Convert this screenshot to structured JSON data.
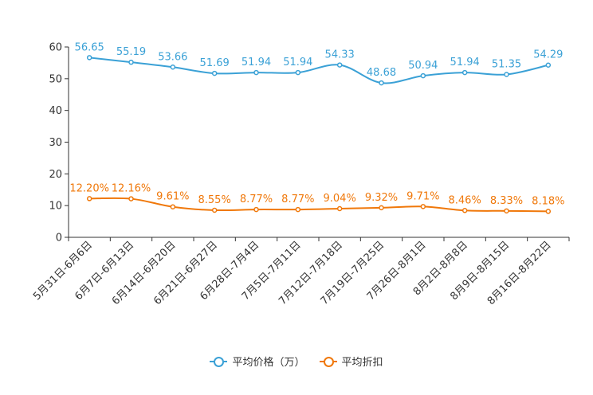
{
  "chart_data": {
    "type": "line",
    "title": "",
    "xlabel": "",
    "ylabel": "",
    "ylim": [
      0,
      60
    ],
    "yticks": [
      0,
      10,
      20,
      30,
      40,
      50,
      60
    ],
    "grid": false,
    "legend_position": "bottom-center",
    "categories": [
      "5月31日-6月6日",
      "6月7日-6月13日",
      "6月14日-6月20日",
      "6月21日-6月27日",
      "6月28日-7月4日",
      "7月5日-7月11日",
      "7月12日-7月18日",
      "7月19日-7月25日",
      "7月26日-8月1日",
      "8月2日-8月8日",
      "8月9日-8月15日",
      "8月16日-8月22日"
    ],
    "series": [
      {
        "name": "平均价格（万）",
        "color": "#3ba1d6",
        "values": [
          56.65,
          55.19,
          53.66,
          51.69,
          51.94,
          51.94,
          54.33,
          48.68,
          50.94,
          51.94,
          51.35,
          54.29
        ],
        "labels": [
          "56.65",
          "55.19",
          "53.66",
          "51.69",
          "51.94",
          "51.94",
          "54.33",
          "48.68",
          "50.94",
          "51.94",
          "51.35",
          "54.29"
        ]
      },
      {
        "name": "平均折扣",
        "color": "#f0780a",
        "values": [
          12.2,
          12.16,
          9.61,
          8.55,
          8.77,
          8.77,
          9.04,
          9.32,
          9.71,
          8.46,
          8.33,
          8.18
        ],
        "labels": [
          "12.20%",
          "12.16%",
          "9.61%",
          "8.55%",
          "8.77%",
          "8.77%",
          "9.04%",
          "9.32%",
          "9.71%",
          "8.46%",
          "8.33%",
          "8.18%"
        ]
      }
    ]
  }
}
